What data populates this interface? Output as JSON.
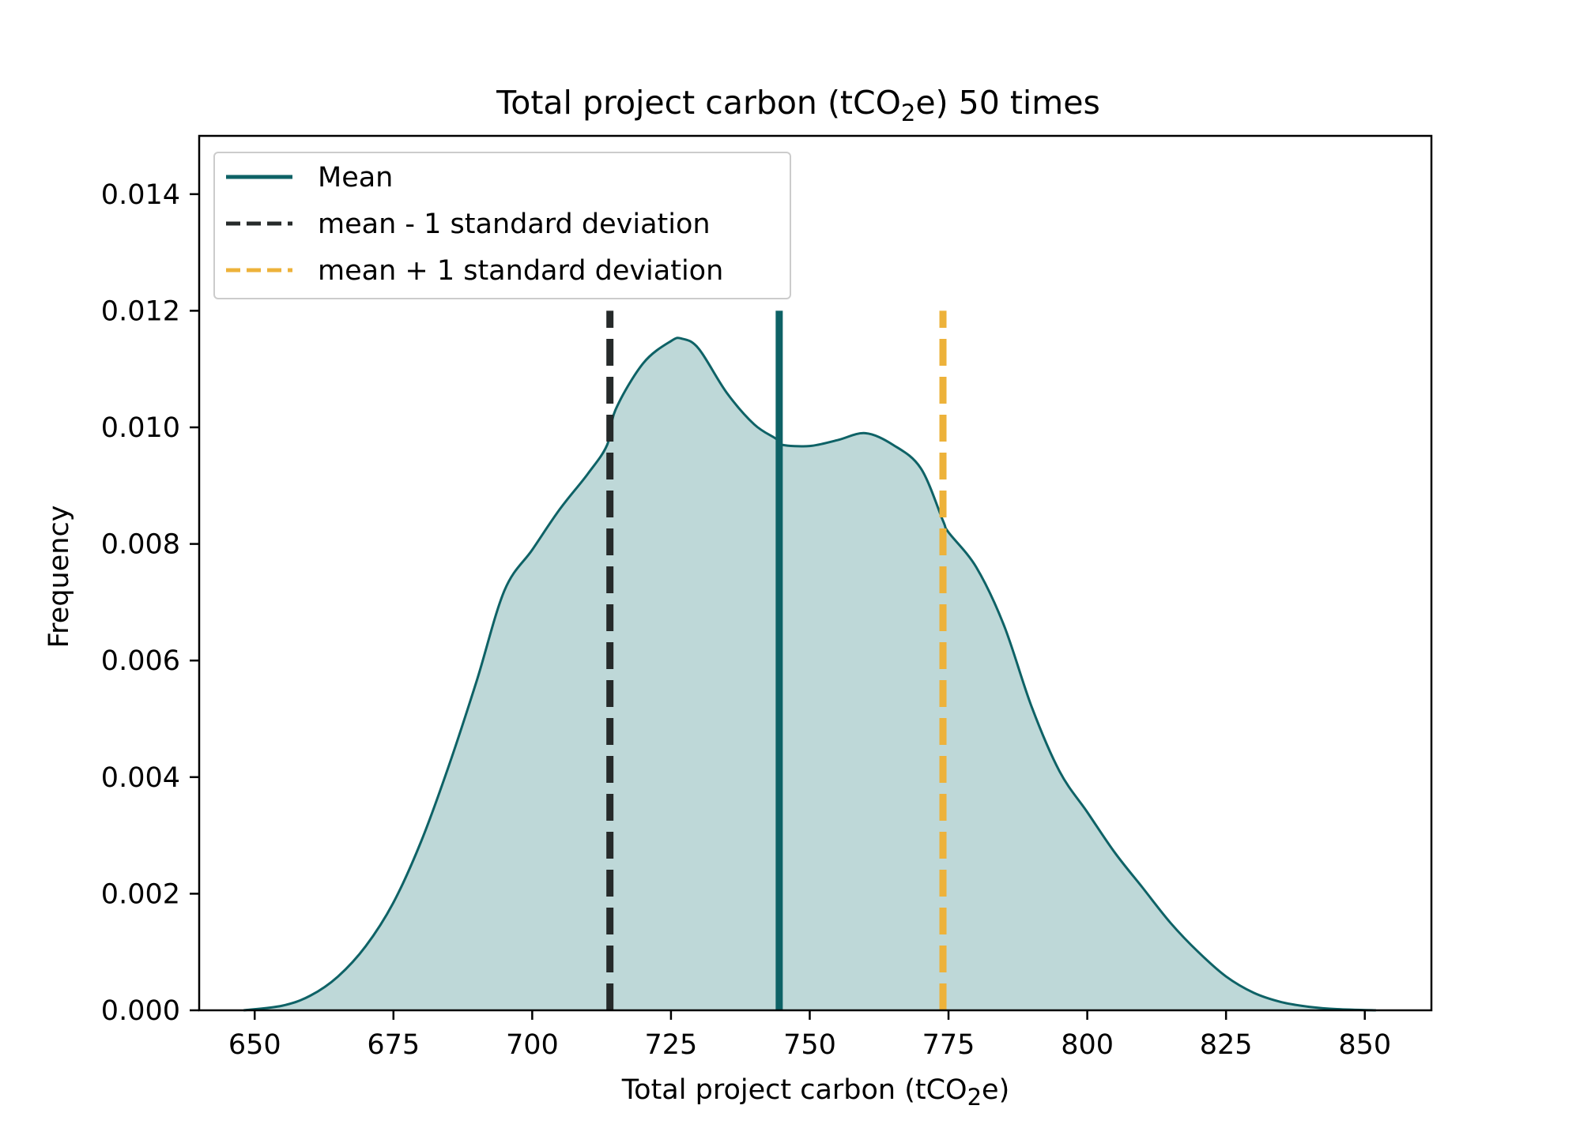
{
  "chart_data": {
    "type": "area",
    "title": {
      "pre": "Total project carbon (tCO",
      "sub": "2",
      "post": "e) 50 times"
    },
    "xlabel": {
      "pre": "Total project carbon (tCO",
      "sub": "2",
      "post": "e)"
    },
    "ylabel": "Frequency",
    "xlim": [
      640,
      862
    ],
    "ylim": [
      0,
      0.015
    ],
    "xticks": [
      650,
      675,
      700,
      725,
      750,
      775,
      800,
      825,
      850
    ],
    "xtick_labels": [
      "650",
      "675",
      "700",
      "725",
      "750",
      "775",
      "800",
      "825",
      "850"
    ],
    "yticks": [
      0,
      0.002,
      0.004,
      0.006,
      0.008,
      0.01,
      0.012,
      0.014
    ],
    "ytick_labels": [
      "0.000",
      "0.002",
      "0.004",
      "0.006",
      "0.008",
      "0.010",
      "0.012",
      "0.014"
    ],
    "grid": false,
    "legend_position": "upper-left",
    "density": {
      "x": [
        648,
        655,
        660,
        665,
        670,
        675,
        680,
        685,
        690,
        695,
        700,
        705,
        710,
        713.5,
        715,
        720,
        725,
        727,
        730,
        735,
        740,
        744,
        745,
        750,
        755,
        760,
        765,
        770,
        774,
        775,
        780,
        785,
        790,
        795,
        800,
        805,
        810,
        815,
        820,
        825,
        830,
        835,
        840,
        845,
        852
      ],
      "y": [
        0.0,
        8e-05,
        0.00025,
        0.00058,
        0.0011,
        0.00185,
        0.0029,
        0.0042,
        0.00565,
        0.0072,
        0.0079,
        0.0086,
        0.0092,
        0.0097,
        0.0103,
        0.0111,
        0.01148,
        0.01152,
        0.01135,
        0.0106,
        0.01005,
        0.0098,
        0.0097,
        0.00968,
        0.00978,
        0.0099,
        0.0097,
        0.0093,
        0.0084,
        0.0082,
        0.0076,
        0.0066,
        0.0052,
        0.0041,
        0.0034,
        0.0027,
        0.0021,
        0.0015,
        0.001,
        0.00058,
        0.0003,
        0.00014,
        6e-05,
        2e-05,
        0.0
      ],
      "line_color": "#0e6266",
      "fill_color": "#bed8d8"
    },
    "vlines": [
      {
        "name": "Mean",
        "x": 744.5,
        "ymax": 0.012,
        "color": "#0e6266",
        "style": "solid"
      },
      {
        "name": "mean - 1 standard deviation",
        "x": 714,
        "ymax": 0.012,
        "color": "#262a2a",
        "style": "dashed"
      },
      {
        "name": "mean + 1 standard deviation",
        "x": 774,
        "ymax": 0.012,
        "color": "#edb23a",
        "style": "dashed"
      }
    ],
    "legend": [
      "Mean",
      "mean - 1 standard deviation",
      "mean + 1 standard deviation"
    ]
  }
}
